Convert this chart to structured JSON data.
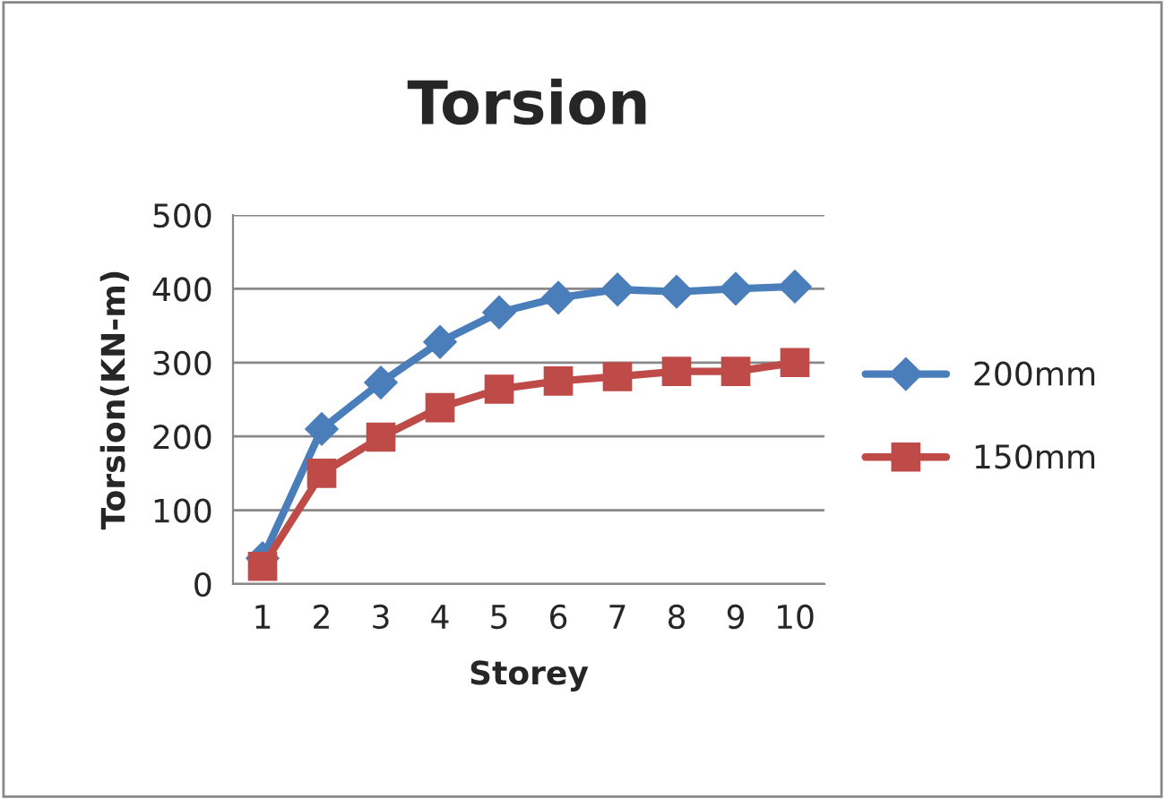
{
  "chart_data": {
    "type": "line",
    "title": "Torsion",
    "xlabel": "Storey",
    "ylabel": "Torsion(KN-m)",
    "categories": [
      "1",
      "2",
      "3",
      "4",
      "5",
      "6",
      "7",
      "8",
      "9",
      "10"
    ],
    "series": [
      {
        "name": "200mm",
        "color": "#4a7ebb",
        "marker": "diamond",
        "values": [
          35,
          210,
          273,
          328,
          368,
          388,
          399,
          396,
          400,
          403
        ]
      },
      {
        "name": "150mm",
        "color": "#be4b48",
        "marker": "square",
        "values": [
          24,
          150,
          199,
          239,
          264,
          275,
          281,
          288,
          288,
          300
        ]
      }
    ],
    "ylim": [
      0,
      500
    ],
    "yticks": [
      0,
      100,
      200,
      300,
      400,
      500
    ],
    "grid": "y",
    "legend": "right"
  }
}
